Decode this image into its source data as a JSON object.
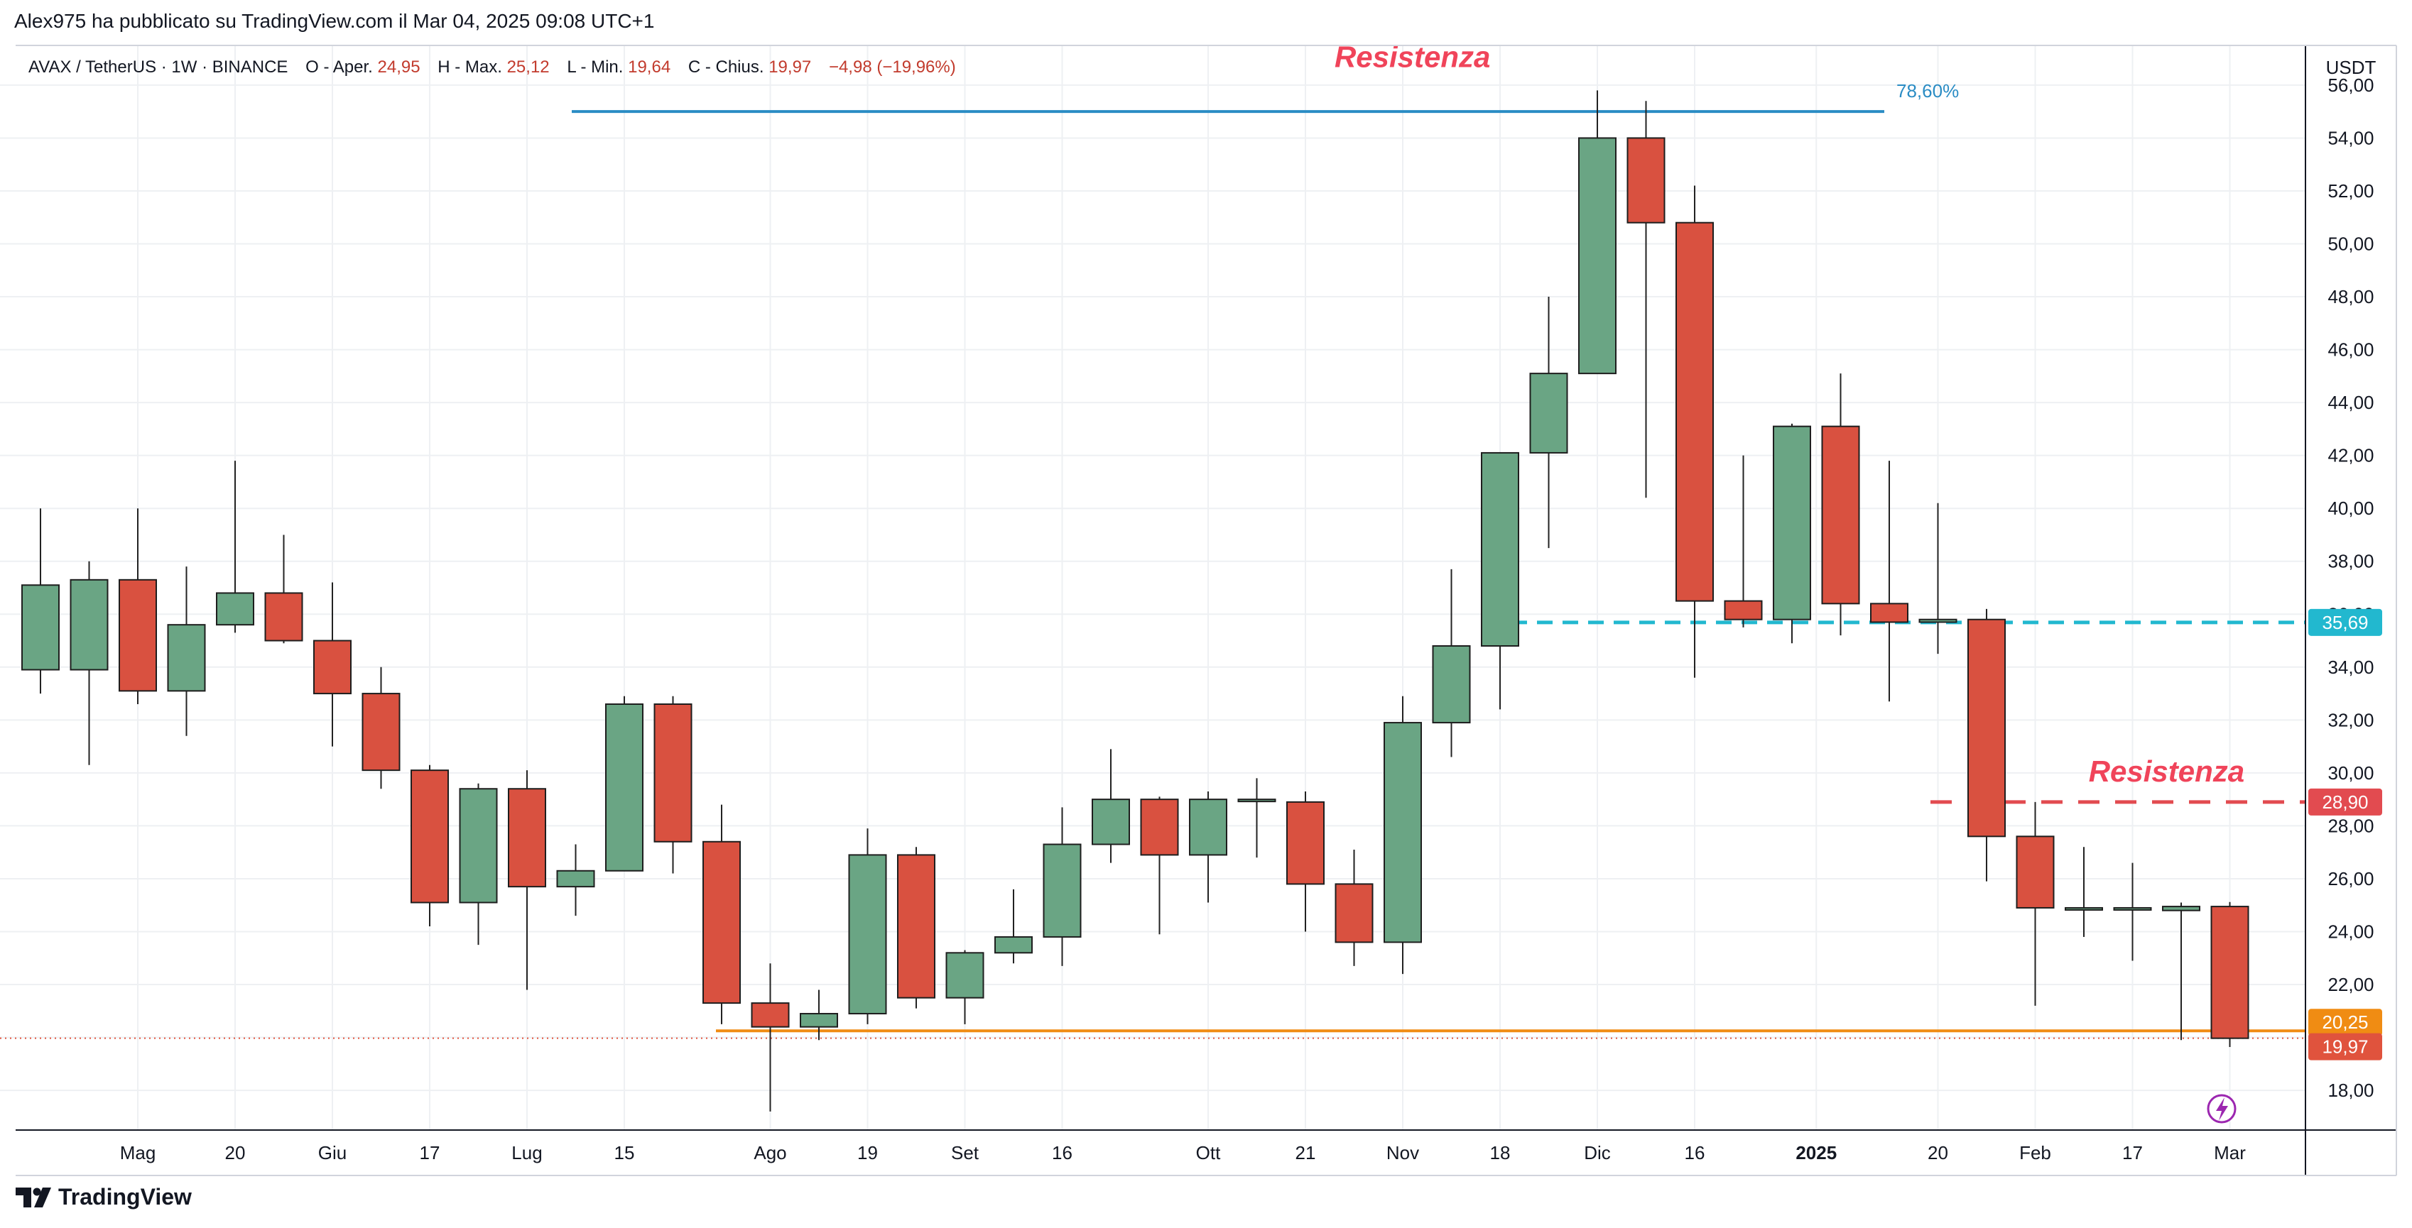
{
  "header": {
    "published": "Alex975 ha pubblicato su TradingView.com il Mar 04, 2025 09:08 UTC+1"
  },
  "footer": {
    "brand": "TradingView"
  },
  "legend": {
    "symbol": "AVAX / TetherUS · 1W · BINANCE",
    "o_label": "O - Aper.",
    "o_value": "24,95",
    "h_label": "H - Max.",
    "h_value": "25,12",
    "l_label": "L - Min.",
    "l_value": "19,64",
    "c_label": "C - Chius.",
    "c_value": "19,97",
    "change": "−4,98 (−19,96%)"
  },
  "colors": {
    "up": "#6aa584",
    "down": "#d95140",
    "grid": "#eef0f3",
    "resistance_line": "#2a8cc4",
    "dashed_cyan": "#22b8cf",
    "dashed_red": "#e24b50",
    "support_orange": "#f08c13",
    "annotation_red": "#f0445a",
    "last_price": "#e0533d"
  },
  "chart_data": {
    "type": "candlestick",
    "ylabel": "USDT",
    "ylim": [
      16.5,
      57.5
    ],
    "y_ticks": [
      "18,00",
      "20,00",
      "22,00",
      "24,00",
      "26,00",
      "28,00",
      "30,00",
      "32,00",
      "34,00",
      "36,00",
      "38,00",
      "40,00",
      "42,00",
      "44,00",
      "46,00",
      "48,00",
      "50,00",
      "52,00",
      "54,00",
      "56,00"
    ],
    "x_labels": [
      {
        "label": "Mag",
        "index": 2,
        "bold": false
      },
      {
        "label": "20",
        "index": 4,
        "bold": false
      },
      {
        "label": "Giu",
        "index": 6,
        "bold": false
      },
      {
        "label": "17",
        "index": 8,
        "bold": false
      },
      {
        "label": "Lug",
        "index": 10,
        "bold": false
      },
      {
        "label": "15",
        "index": 12,
        "bold": false
      },
      {
        "label": "Ago",
        "index": 15,
        "bold": false
      },
      {
        "label": "19",
        "index": 17,
        "bold": false
      },
      {
        "label": "Set",
        "index": 19,
        "bold": false
      },
      {
        "label": "16",
        "index": 21,
        "bold": false
      },
      {
        "label": "Ott",
        "index": 24,
        "bold": false
      },
      {
        "label": "21",
        "index": 26,
        "bold": false
      },
      {
        "label": "Nov",
        "index": 28,
        "bold": false
      },
      {
        "label": "18",
        "index": 30,
        "bold": false
      },
      {
        "label": "Dic",
        "index": 32,
        "bold": false
      },
      {
        "label": "16",
        "index": 34,
        "bold": false
      },
      {
        "label": "2025",
        "index": 36.5,
        "bold": true
      },
      {
        "label": "20",
        "index": 39,
        "bold": false
      },
      {
        "label": "Feb",
        "index": 41,
        "bold": false
      },
      {
        "label": "17",
        "index": 43,
        "bold": false
      },
      {
        "label": "Mar",
        "index": 45,
        "bold": false
      }
    ],
    "candles": [
      {
        "o": 33.9,
        "h": 40.0,
        "l": 33.0,
        "c": 37.1
      },
      {
        "o": 33.9,
        "h": 38.0,
        "l": 30.3,
        "c": 37.3
      },
      {
        "o": 37.3,
        "h": 40.0,
        "l": 32.6,
        "c": 33.1
      },
      {
        "o": 33.1,
        "h": 37.8,
        "l": 31.4,
        "c": 35.6
      },
      {
        "o": 35.6,
        "h": 41.8,
        "l": 35.3,
        "c": 36.8
      },
      {
        "o": 36.8,
        "h": 39.0,
        "l": 34.9,
        "c": 35.0
      },
      {
        "o": 35.0,
        "h": 37.2,
        "l": 31.0,
        "c": 33.0
      },
      {
        "o": 33.0,
        "h": 34.0,
        "l": 29.4,
        "c": 30.1
      },
      {
        "o": 30.1,
        "h": 30.3,
        "l": 24.2,
        "c": 25.1
      },
      {
        "o": 25.1,
        "h": 29.6,
        "l": 23.5,
        "c": 29.4
      },
      {
        "o": 29.4,
        "h": 30.1,
        "l": 21.8,
        "c": 25.7
      },
      {
        "o": 25.7,
        "h": 27.3,
        "l": 24.6,
        "c": 26.3
      },
      {
        "o": 26.3,
        "h": 32.9,
        "l": 26.3,
        "c": 32.6
      },
      {
        "o": 32.6,
        "h": 32.9,
        "l": 26.2,
        "c": 27.4
      },
      {
        "o": 27.4,
        "h": 28.8,
        "l": 20.5,
        "c": 21.3
      },
      {
        "o": 21.3,
        "h": 22.8,
        "l": 17.2,
        "c": 20.4
      },
      {
        "o": 20.4,
        "h": 21.8,
        "l": 19.9,
        "c": 20.9
      },
      {
        "o": 20.9,
        "h": 27.9,
        "l": 20.5,
        "c": 26.9
      },
      {
        "o": 26.9,
        "h": 27.2,
        "l": 21.1,
        "c": 21.5
      },
      {
        "o": 21.5,
        "h": 23.3,
        "l": 20.5,
        "c": 23.2
      },
      {
        "o": 23.2,
        "h": 25.6,
        "l": 22.8,
        "c": 23.8
      },
      {
        "o": 23.8,
        "h": 28.7,
        "l": 22.7,
        "c": 27.3
      },
      {
        "o": 27.3,
        "h": 30.9,
        "l": 26.6,
        "c": 29.0
      },
      {
        "o": 29.0,
        "h": 29.1,
        "l": 23.9,
        "c": 26.9
      },
      {
        "o": 26.9,
        "h": 29.3,
        "l": 25.1,
        "c": 29.0
      },
      {
        "o": 29.0,
        "h": 29.8,
        "l": 26.8,
        "c": 29.0
      },
      {
        "o": 28.9,
        "h": 29.3,
        "l": 24.0,
        "c": 25.8
      },
      {
        "o": 25.8,
        "h": 27.1,
        "l": 22.7,
        "c": 23.6
      },
      {
        "o": 23.6,
        "h": 32.9,
        "l": 22.4,
        "c": 31.9
      },
      {
        "o": 31.9,
        "h": 37.7,
        "l": 30.6,
        "c": 34.8
      },
      {
        "o": 34.8,
        "h": 42.1,
        "l": 32.4,
        "c": 42.1
      },
      {
        "o": 42.1,
        "h": 48.0,
        "l": 38.5,
        "c": 45.1
      },
      {
        "o": 45.1,
        "h": 55.8,
        "l": 45.1,
        "c": 54.0
      },
      {
        "o": 54.0,
        "h": 55.4,
        "l": 40.4,
        "c": 50.8
      },
      {
        "o": 50.8,
        "h": 52.2,
        "l": 33.6,
        "c": 36.5
      },
      {
        "o": 36.5,
        "h": 42.0,
        "l": 35.5,
        "c": 35.8
      },
      {
        "o": 35.8,
        "h": 43.2,
        "l": 34.9,
        "c": 43.1
      },
      {
        "o": 43.1,
        "h": 45.1,
        "l": 35.2,
        "c": 36.4
      },
      {
        "o": 36.4,
        "h": 41.8,
        "l": 32.7,
        "c": 35.7
      },
      {
        "o": 35.7,
        "h": 40.2,
        "l": 34.5,
        "c": 35.8
      },
      {
        "o": 35.8,
        "h": 36.2,
        "l": 25.9,
        "c": 27.6
      },
      {
        "o": 27.6,
        "h": 28.9,
        "l": 21.2,
        "c": 24.9
      },
      {
        "o": 24.9,
        "h": 27.2,
        "l": 23.8,
        "c": 24.9
      },
      {
        "o": 24.9,
        "h": 26.6,
        "l": 22.9,
        "c": 24.9
      },
      {
        "o": 24.8,
        "h": 25.1,
        "l": 19.9,
        "c": 24.95
      },
      {
        "o": 24.95,
        "h": 25.12,
        "l": 19.64,
        "c": 19.97
      }
    ],
    "annotations": [
      {
        "text": "Resistenza",
        "price": 57.0,
        "index": 28.2
      },
      {
        "text": "Resistenza",
        "price": 30.0,
        "index": 43.7
      }
    ],
    "fib_label": "78,60%",
    "fib_level": 55.0,
    "resistance_level_label": "35,69",
    "resistance_level": 35.69,
    "second_resistance_label": "28,90",
    "second_resistance": 28.9,
    "support_label": "20,25",
    "support": 20.25,
    "last_price_label": "19,97",
    "last_price": 19.97
  }
}
